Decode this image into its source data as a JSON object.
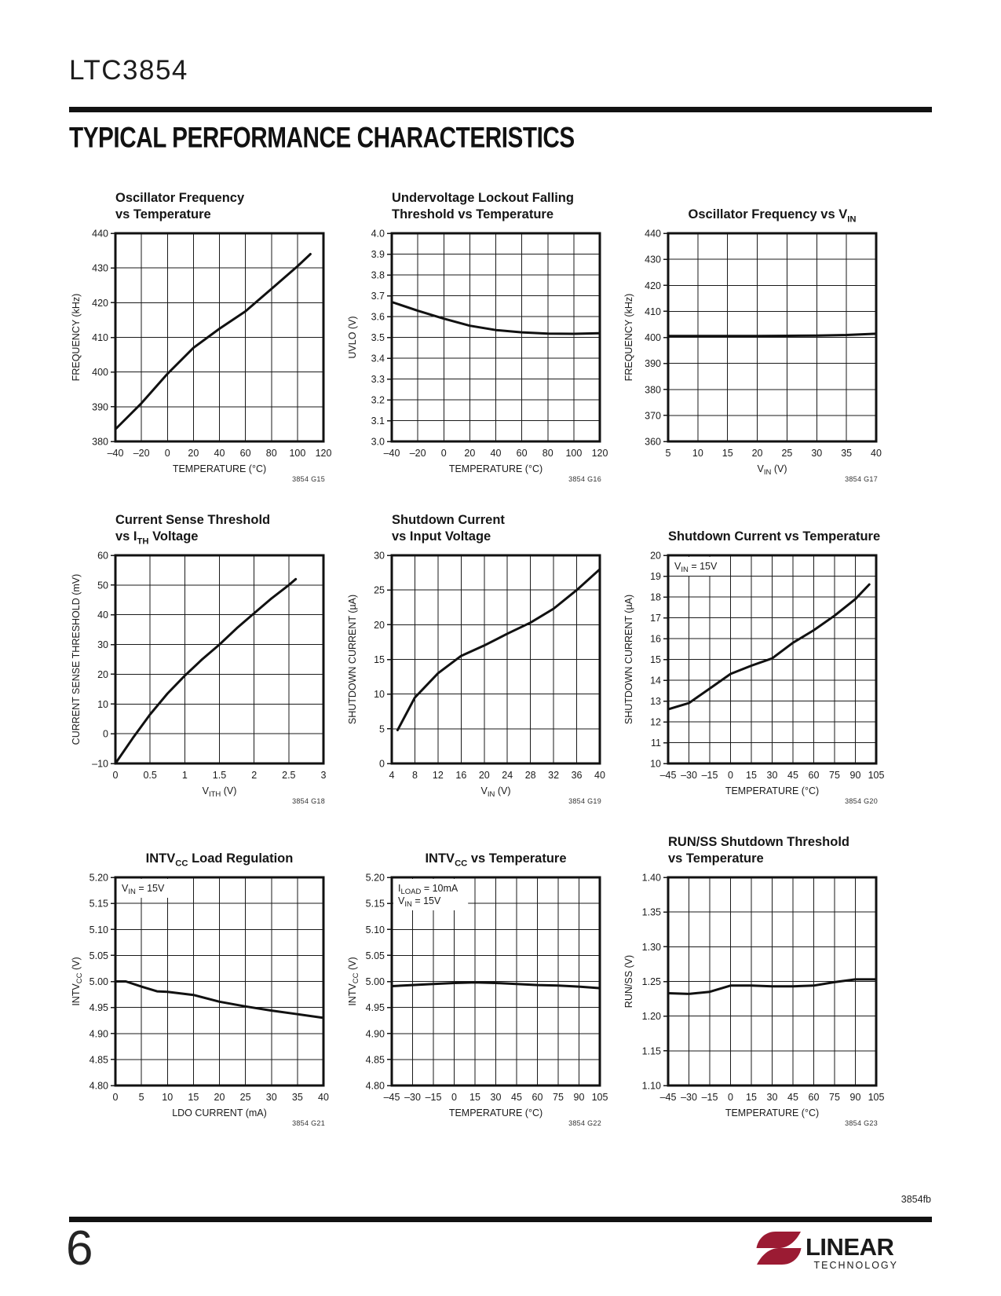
{
  "page": {
    "part_number": "LTC3854",
    "section_title": "TYPICAL PERFORMANCE CHARACTERISTICS",
    "page_number": "6",
    "doc_code": "3854fb",
    "logo": {
      "brand": "LINEAR",
      "sub": "TECHNOLOGY",
      "color": "#9b1b33"
    }
  },
  "chart_data": [
    {
      "type": "line",
      "ref": "3854 G15",
      "title": "Oscillator Frequency vs Temperature",
      "title_lines": [
        [
          {
            "t": "Oscillator Frequency"
          }
        ],
        [
          {
            "t": "vs Temperature"
          }
        ]
      ],
      "ylabel_parts": [
        {
          "t": "FREQUENCY (kHz)"
        }
      ],
      "xlabel_parts": [
        {
          "t": "TEMPERATURE (°C)"
        }
      ],
      "xlim": [
        -40,
        120
      ],
      "ylim": [
        380,
        440
      ],
      "grid": true,
      "xtick_values": [
        -40,
        -20,
        0,
        20,
        40,
        60,
        80,
        100,
        120
      ],
      "xtick_labels": [
        "–40",
        "–20",
        "0",
        "20",
        "40",
        "60",
        "80",
        "100",
        "120"
      ],
      "ytick_values": [
        380,
        390,
        400,
        410,
        420,
        430,
        440
      ],
      "ytick_labels": [
        "380",
        "390",
        "400",
        "410",
        "420",
        "430",
        "440"
      ],
      "annotations": [],
      "series": [
        {
          "name": "oscillator frequency",
          "x": [
            -40,
            -20,
            0,
            20,
            40,
            60,
            80,
            100,
            110
          ],
          "y": [
            383.5,
            391,
            399.5,
            407,
            412.5,
            417.5,
            424,
            430.5,
            434
          ]
        }
      ]
    },
    {
      "type": "line",
      "ref": "3854 G16",
      "title": "Undervoltage Lockout Falling Threshold vs Temperature",
      "title_lines": [
        [
          {
            "t": "Undervoltage Lockout Falling"
          }
        ],
        [
          {
            "t": "Threshold vs Temperature"
          }
        ]
      ],
      "ylabel_parts": [
        {
          "t": "UVLO (V)"
        }
      ],
      "xlabel_parts": [
        {
          "t": "TEMPERATURE (°C)"
        }
      ],
      "xlim": [
        -40,
        120
      ],
      "ylim": [
        3.0,
        4.0
      ],
      "grid": true,
      "xtick_values": [
        -40,
        -20,
        0,
        20,
        40,
        60,
        80,
        100,
        120
      ],
      "xtick_labels": [
        "–40",
        "–20",
        "0",
        "20",
        "40",
        "60",
        "80",
        "100",
        "120"
      ],
      "ytick_values": [
        3.0,
        3.1,
        3.2,
        3.3,
        3.4,
        3.5,
        3.6,
        3.7,
        3.8,
        3.9,
        4.0
      ],
      "ytick_labels": [
        "3.0",
        "3.1",
        "3.2",
        "3.3",
        "3.4",
        "3.5",
        "3.6",
        "3.7",
        "3.8",
        "3.9",
        "4.0"
      ],
      "annotations": [],
      "series": [
        {
          "name": "UVLO falling threshold",
          "x": [
            -40,
            -20,
            0,
            20,
            40,
            60,
            80,
            100,
            120
          ],
          "y": [
            3.67,
            3.628,
            3.59,
            3.556,
            3.535,
            3.524,
            3.518,
            3.517,
            3.52
          ]
        }
      ]
    },
    {
      "type": "line",
      "ref": "3854 G17",
      "title": "Oscillator Frequency vs VIN",
      "title_lines": [
        [
          {
            "t": "Oscillator Frequency vs V"
          },
          {
            "t": "IN",
            "sub": true
          }
        ]
      ],
      "ylabel_parts": [
        {
          "t": "FREQUENCY (kHz)"
        }
      ],
      "xlabel_parts": [
        {
          "t": "V"
        },
        {
          "t": "IN",
          "sub": true
        },
        {
          "t": " (V)"
        }
      ],
      "xlim": [
        5,
        40
      ],
      "ylim": [
        360,
        440
      ],
      "grid": true,
      "xtick_values": [
        5,
        10,
        15,
        20,
        25,
        30,
        35,
        40
      ],
      "xtick_labels": [
        "5",
        "10",
        "15",
        "20",
        "25",
        "30",
        "35",
        "40"
      ],
      "ytick_values": [
        360,
        370,
        380,
        390,
        400,
        410,
        420,
        430,
        440
      ],
      "ytick_labels": [
        "360",
        "370",
        "380",
        "390",
        "400",
        "410",
        "420",
        "430",
        "440"
      ],
      "annotations": [],
      "series": [
        {
          "name": "oscillator frequency",
          "x": [
            5,
            10,
            15,
            20,
            25,
            30,
            35,
            40
          ],
          "y": [
            400.5,
            400.5,
            400.5,
            400.5,
            400.6,
            400.7,
            400.9,
            401.4
          ]
        }
      ]
    },
    {
      "type": "line",
      "ref": "3854 G18",
      "title": "Current Sense Threshold vs ITH Voltage",
      "title_lines": [
        [
          {
            "t": "Current Sense Threshold"
          }
        ],
        [
          {
            "t": "vs I"
          },
          {
            "t": "TH",
            "sub": true
          },
          {
            "t": " Voltage"
          }
        ]
      ],
      "ylabel_parts": [
        {
          "t": "CURRENT SENSE THRESHOLD (mV)"
        }
      ],
      "xlabel_parts": [
        {
          "t": "V"
        },
        {
          "t": "ITH",
          "sub": true
        },
        {
          "t": " (V)"
        }
      ],
      "xlim": [
        0,
        3
      ],
      "ylim": [
        -10,
        60
      ],
      "grid": true,
      "xtick_values": [
        0,
        0.5,
        1,
        1.5,
        2,
        2.5,
        3
      ],
      "xtick_labels": [
        "0",
        "0.5",
        "1",
        "1.5",
        "2",
        "2.5",
        "3"
      ],
      "ytick_values": [
        -10,
        0,
        10,
        20,
        30,
        40,
        50,
        60
      ],
      "ytick_labels": [
        "–10",
        "0",
        "10",
        "20",
        "30",
        "40",
        "50",
        "60"
      ],
      "annotations": [],
      "series": [
        {
          "name": "current sense threshold",
          "x": [
            0,
            0.25,
            0.5,
            0.75,
            1,
            1.25,
            1.5,
            1.75,
            2,
            2.25,
            2.5,
            2.6
          ],
          "y": [
            -10,
            -1.5,
            6.5,
            13.5,
            19.5,
            25,
            30,
            35.5,
            40.5,
            45.5,
            50,
            52
          ]
        }
      ]
    },
    {
      "type": "line",
      "ref": "3854 G19",
      "title": "Shutdown Current vs Input Voltage",
      "title_lines": [
        [
          {
            "t": "Shutdown Current"
          }
        ],
        [
          {
            "t": "vs Input Voltage"
          }
        ]
      ],
      "ylabel_parts": [
        {
          "t": "SHUTDOWN CURRENT (µA)"
        }
      ],
      "xlabel_parts": [
        {
          "t": "V"
        },
        {
          "t": "IN",
          "sub": true
        },
        {
          "t": " (V)"
        }
      ],
      "xlim": [
        4,
        40
      ],
      "ylim": [
        0,
        30
      ],
      "grid": true,
      "xtick_values": [
        4,
        8,
        12,
        16,
        20,
        24,
        28,
        32,
        36,
        40
      ],
      "xtick_labels": [
        "4",
        "8",
        "12",
        "16",
        "20",
        "24",
        "28",
        "32",
        "36",
        "40"
      ],
      "ytick_values": [
        0,
        5,
        10,
        15,
        20,
        25,
        30
      ],
      "ytick_labels": [
        "0",
        "5",
        "10",
        "15",
        "20",
        "25",
        "30"
      ],
      "annotations": [],
      "series": [
        {
          "name": "shutdown current",
          "x": [
            5,
            8,
            12,
            16,
            20,
            24,
            28,
            32,
            36,
            40
          ],
          "y": [
            4.8,
            9.5,
            13,
            15.5,
            17,
            18.7,
            20.3,
            22.3,
            25,
            28
          ]
        }
      ]
    },
    {
      "type": "line",
      "ref": "3854 G20",
      "title": "Shutdown Current vs Temperature",
      "title_lines": [
        [
          {
            "t": "Shutdown Current vs Temperature"
          }
        ]
      ],
      "ylabel_parts": [
        {
          "t": "SHUTDOWN CURRENT (µA)"
        }
      ],
      "xlabel_parts": [
        {
          "t": "TEMPERATURE (°C)"
        }
      ],
      "xlim": [
        -45,
        105
      ],
      "ylim": [
        10,
        20
      ],
      "grid": true,
      "xtick_values": [
        -45,
        -30,
        -15,
        0,
        15,
        30,
        45,
        60,
        75,
        90,
        105
      ],
      "xtick_labels": [
        "–45",
        "–30",
        "–15",
        "0",
        "15",
        "30",
        "45",
        "60",
        "75",
        "90",
        "105"
      ],
      "ytick_values": [
        10,
        11,
        12,
        13,
        14,
        15,
        16,
        17,
        18,
        19,
        20
      ],
      "ytick_labels": [
        "10",
        "11",
        "12",
        "13",
        "14",
        "15",
        "16",
        "17",
        "18",
        "19",
        "20"
      ],
      "annotations": [
        [
          {
            "t": "V"
          },
          {
            "t": "IN",
            "sub": true
          },
          {
            "t": " = 15V"
          }
        ]
      ],
      "series": [
        {
          "name": "shutdown current",
          "x": [
            -45,
            -30,
            -15,
            0,
            15,
            30,
            45,
            60,
            75,
            90,
            100
          ],
          "y": [
            12.6,
            12.9,
            13.6,
            14.3,
            14.7,
            15.05,
            15.8,
            16.4,
            17.1,
            17.9,
            18.6
          ]
        }
      ]
    },
    {
      "type": "line",
      "ref": "3854 G21",
      "title": "INTVCC Load Regulation",
      "title_lines": [
        [
          {
            "t": "INTV"
          },
          {
            "t": "CC",
            "sub": true
          },
          {
            "t": " Load Regulation"
          }
        ]
      ],
      "ylabel_parts": [
        {
          "t": "INTV"
        },
        {
          "t": "CC",
          "sub": true
        },
        {
          "t": " (V)"
        }
      ],
      "xlabel_parts": [
        {
          "t": "LDO CURRENT (mA)"
        }
      ],
      "xlim": [
        0,
        40
      ],
      "ylim": [
        4.8,
        5.2
      ],
      "grid": true,
      "xtick_values": [
        0,
        5,
        10,
        15,
        20,
        25,
        30,
        35,
        40
      ],
      "xtick_labels": [
        "0",
        "5",
        "10",
        "15",
        "20",
        "25",
        "30",
        "35",
        "40"
      ],
      "ytick_values": [
        4.8,
        4.85,
        4.9,
        4.95,
        5.0,
        5.05,
        5.1,
        5.15,
        5.2
      ],
      "ytick_labels": [
        "4.80",
        "4.85",
        "4.90",
        "4.95",
        "5.00",
        "5.05",
        "5.10",
        "5.15",
        "5.20"
      ],
      "annotations": [
        [
          {
            "t": "V"
          },
          {
            "t": "IN",
            "sub": true
          },
          {
            "t": " = 15V"
          }
        ]
      ],
      "series": [
        {
          "name": "INTVCC",
          "x": [
            0,
            2,
            5,
            8,
            10,
            15,
            20,
            25,
            30,
            35,
            40
          ],
          "y": [
            5.0,
            5.0,
            4.99,
            4.981,
            4.98,
            4.974,
            4.961,
            4.952,
            4.944,
            4.937,
            4.93
          ]
        }
      ]
    },
    {
      "type": "line",
      "ref": "3854 G22",
      "title": "INTVCC vs Temperature",
      "title_lines": [
        [
          {
            "t": "INTV"
          },
          {
            "t": "CC",
            "sub": true
          },
          {
            "t": " vs Temperature"
          }
        ]
      ],
      "ylabel_parts": [
        {
          "t": "INTV"
        },
        {
          "t": "CC",
          "sub": true
        },
        {
          "t": " (V)"
        }
      ],
      "xlabel_parts": [
        {
          "t": "TEMPERATURE (°C)"
        }
      ],
      "xlim": [
        -45,
        105
      ],
      "ylim": [
        4.8,
        5.2
      ],
      "grid": true,
      "xtick_values": [
        -45,
        -30,
        -15,
        0,
        15,
        30,
        45,
        60,
        75,
        90,
        105
      ],
      "xtick_labels": [
        "–45",
        "–30",
        "–15",
        "0",
        "15",
        "30",
        "45",
        "60",
        "75",
        "90",
        "105"
      ],
      "ytick_values": [
        4.8,
        4.85,
        4.9,
        4.95,
        5.0,
        5.05,
        5.1,
        5.15,
        5.2
      ],
      "ytick_labels": [
        "4.80",
        "4.85",
        "4.90",
        "4.95",
        "5.00",
        "5.05",
        "5.10",
        "5.15",
        "5.20"
      ],
      "annotations": [
        [
          {
            "t": "I"
          },
          {
            "t": "LOAD",
            "sub": true
          },
          {
            "t": " = 10mA"
          }
        ],
        [
          {
            "t": "V"
          },
          {
            "t": "IN",
            "sub": true
          },
          {
            "t": " = 15V"
          }
        ]
      ],
      "series": [
        {
          "name": "INTVCC",
          "x": [
            -45,
            -30,
            -15,
            0,
            15,
            30,
            45,
            60,
            75,
            90,
            105
          ],
          "y": [
            4.991,
            4.993,
            4.995,
            4.997,
            4.998,
            4.997,
            4.995,
            4.993,
            4.992,
            4.99,
            4.987
          ]
        }
      ]
    },
    {
      "type": "line",
      "ref": "3854 G23",
      "title": "RUN/SS Shutdown Threshold vs Temperature",
      "title_lines": [
        [
          {
            "t": "RUN/SS Shutdown Threshold"
          }
        ],
        [
          {
            "t": "vs Temperature"
          }
        ]
      ],
      "ylabel_parts": [
        {
          "t": "RUN/SS (V)"
        }
      ],
      "xlabel_parts": [
        {
          "t": "TEMPERATURE (°C)"
        }
      ],
      "xlim": [
        -45,
        105
      ],
      "ylim": [
        1.1,
        1.4
      ],
      "grid": true,
      "xtick_values": [
        -45,
        -30,
        -15,
        0,
        15,
        30,
        45,
        60,
        75,
        90,
        105
      ],
      "xtick_labels": [
        "–45",
        "–30",
        "–15",
        "0",
        "15",
        "30",
        "45",
        "60",
        "75",
        "90",
        "105"
      ],
      "ytick_values": [
        1.1,
        1.15,
        1.2,
        1.25,
        1.3,
        1.35,
        1.4
      ],
      "ytick_labels": [
        "1.10",
        "1.15",
        "1.20",
        "1.25",
        "1.30",
        "1.35",
        "1.40"
      ],
      "annotations": [],
      "series": [
        {
          "name": "RUN/SS threshold",
          "x": [
            -45,
            -30,
            -15,
            0,
            15,
            30,
            45,
            60,
            75,
            90,
            105
          ],
          "y": [
            1.233,
            1.232,
            1.235,
            1.244,
            1.244,
            1.243,
            1.243,
            1.244,
            1.249,
            1.253,
            1.253
          ]
        }
      ]
    }
  ]
}
